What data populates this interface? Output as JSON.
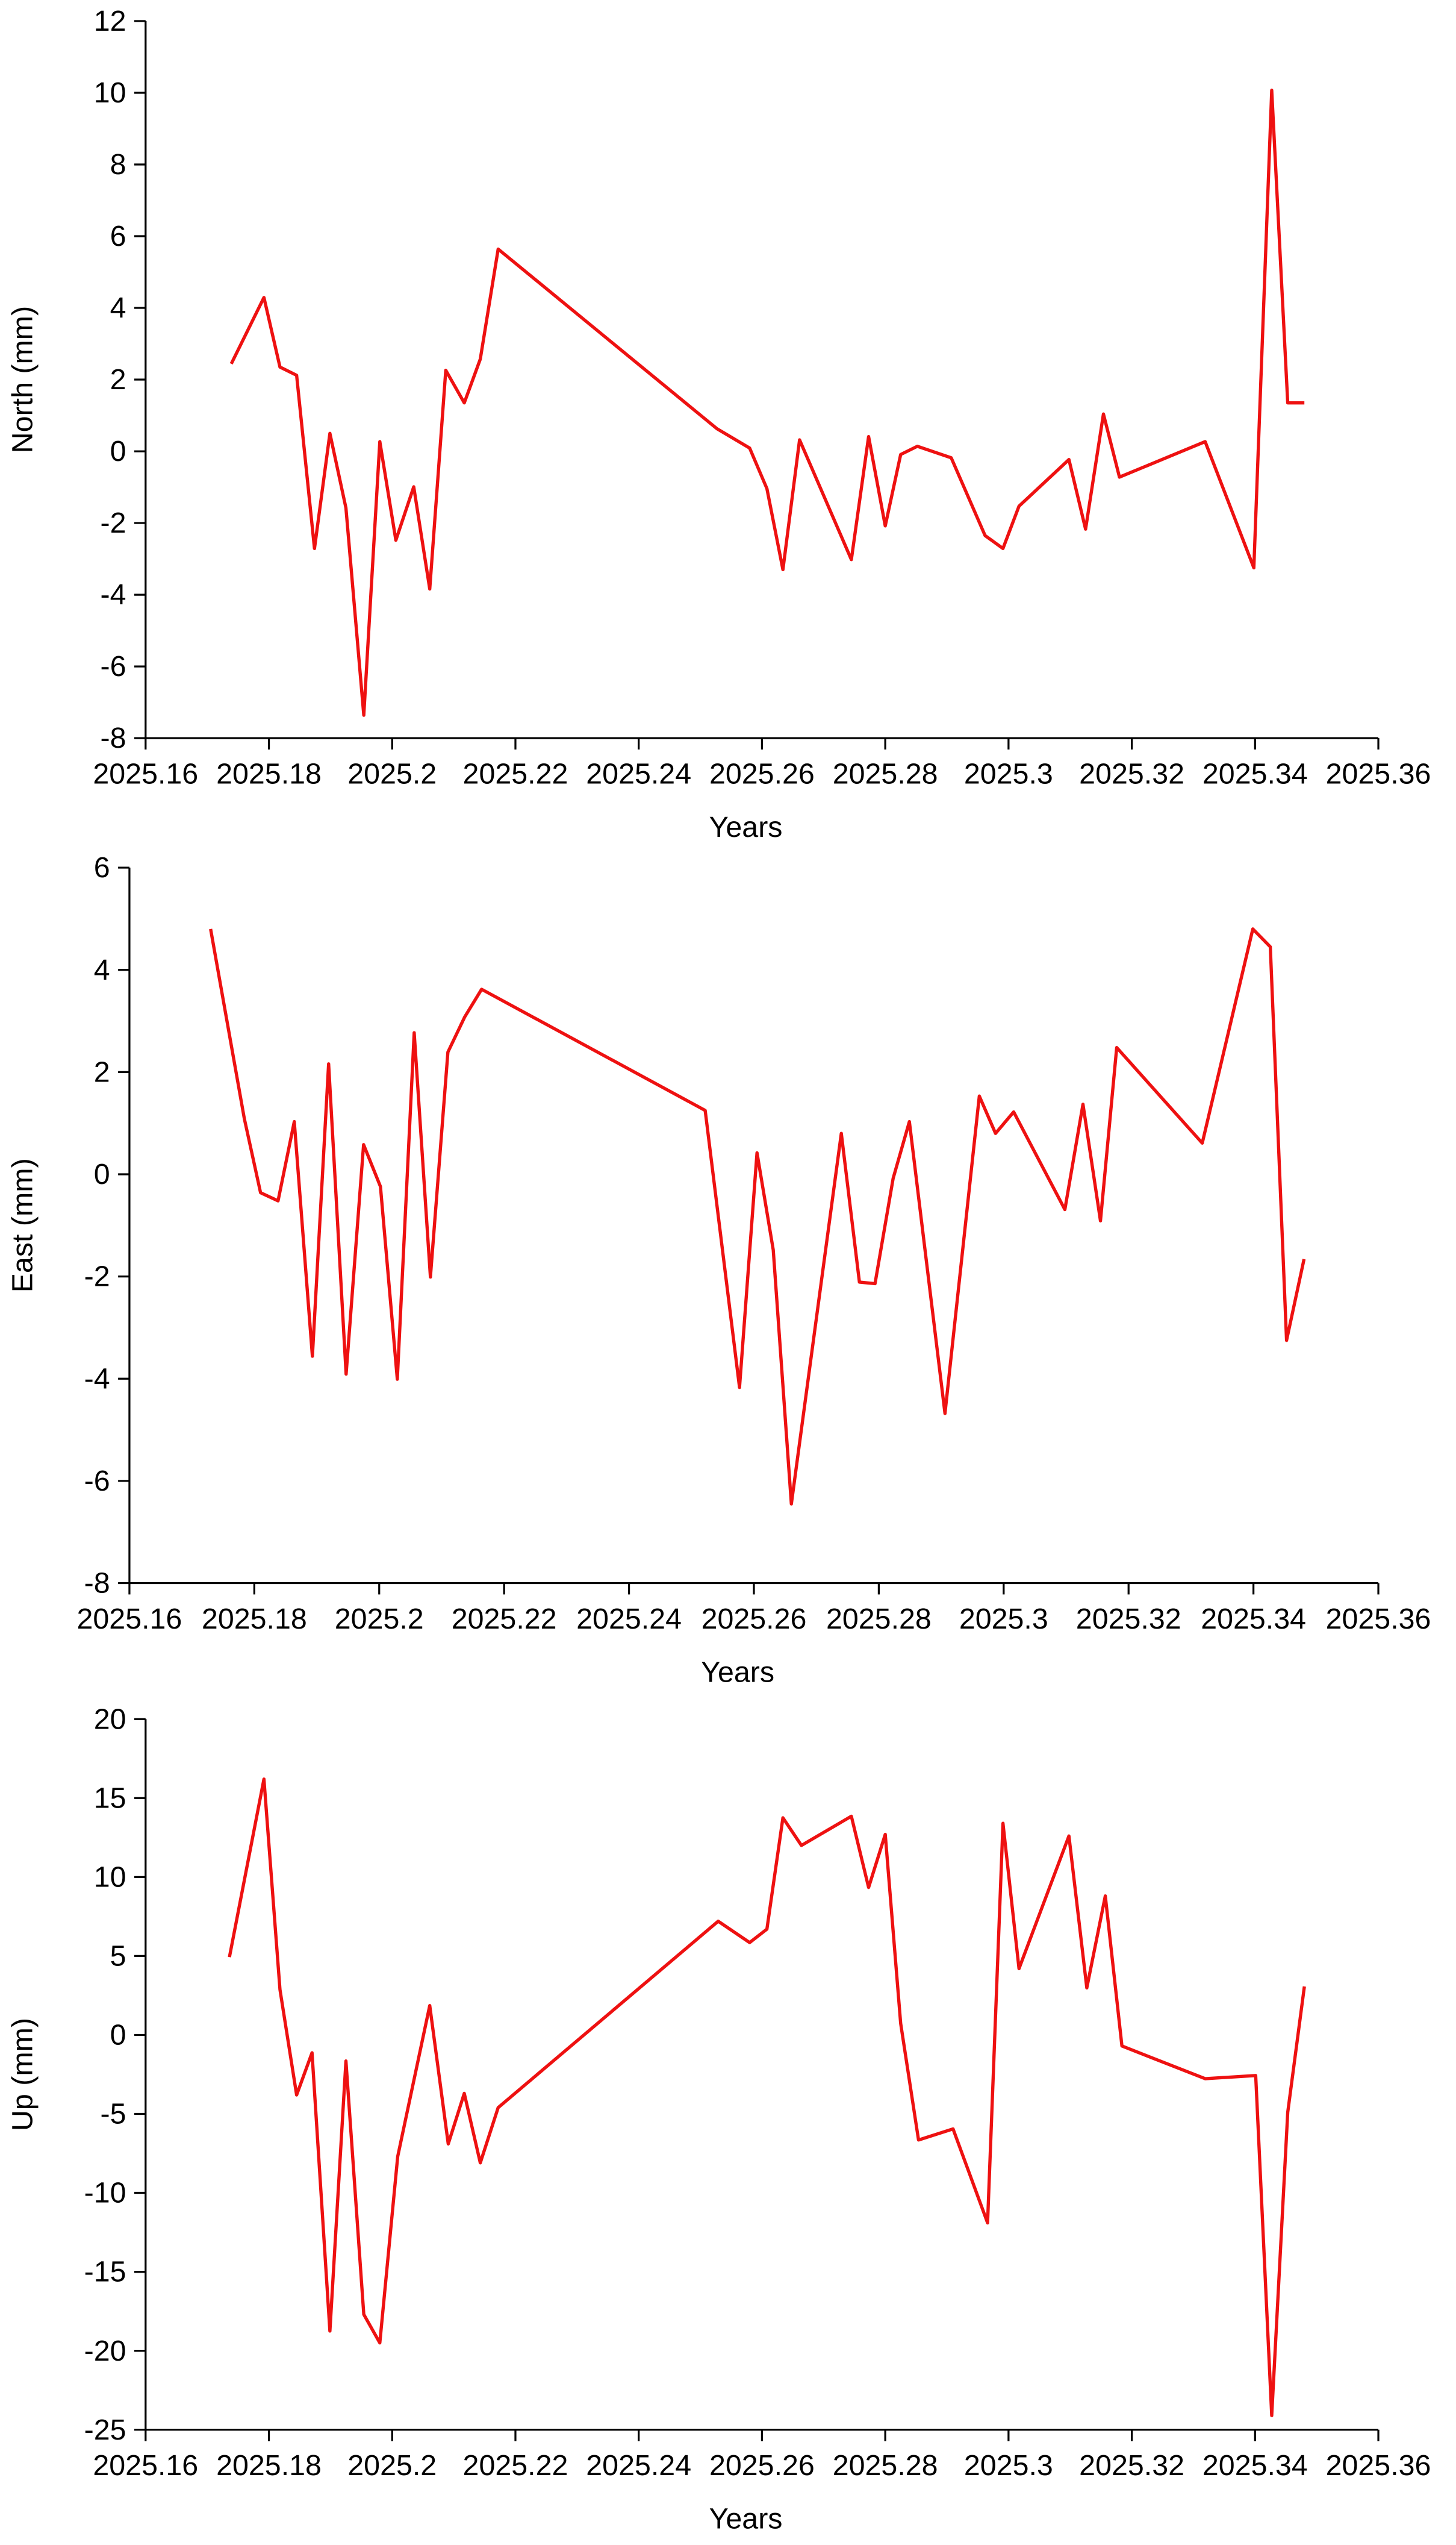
{
  "chart_data": [
    {
      "type": "line",
      "xlabel": "Years",
      "ylabel": "North (mm)",
      "color": "#ee1111",
      "xlim": [
        2025.16,
        2025.36
      ],
      "xticks": [
        2025.16,
        2025.18,
        2025.2,
        2025.22,
        2025.24,
        2025.26,
        2025.28,
        2025.3,
        2025.32,
        2025.34,
        2025.36
      ],
      "ylim": [
        -8,
        12
      ],
      "yticks": [
        -8,
        -6,
        -4,
        -2,
        0,
        2,
        4,
        6,
        8,
        10,
        12
      ],
      "x": [
        2025.1739,
        2025.1792,
        2025.1818,
        2025.1845,
        2025.1874,
        2025.1899,
        2025.1925,
        2025.1954,
        2025.198,
        2025.2006,
        2025.2035,
        2025.2061,
        2025.2087,
        2025.2117,
        2025.2143,
        2025.2172,
        2025.2527,
        2025.258,
        2025.2608,
        2025.2634,
        2025.2661,
        2025.2745,
        2025.2773,
        2025.28,
        2025.2825,
        2025.2852,
        2025.2907,
        2025.2962,
        2025.2991,
        2025.3017,
        2025.3098,
        2025.3125,
        2025.3154,
        2025.318,
        2025.3319,
        2025.3398,
        2025.3427,
        2025.3453,
        2025.348
      ],
      "values": [
        2.44,
        4.29,
        2.35,
        2.12,
        -2.71,
        0.5,
        -1.58,
        -7.36,
        0.27,
        -2.48,
        -0.99,
        -3.84,
        2.26,
        1.35,
        2.57,
        5.64,
        0.63,
        0.09,
        -1.04,
        -3.3,
        0.32,
        -3.02,
        0.41,
        -2.08,
        -0.09,
        0.14,
        -0.18,
        -2.35,
        -2.71,
        -1.53,
        -0.23,
        -2.17,
        1.04,
        -0.72,
        0.27,
        -3.25,
        10.07,
        1.35,
        1.35
      ]
    },
    {
      "type": "line",
      "xlabel": "Years",
      "ylabel": "East (mm)",
      "color": "#ee1111",
      "xlim": [
        2025.16,
        2025.36
      ],
      "xticks": [
        2025.16,
        2025.18,
        2025.2,
        2025.22,
        2025.24,
        2025.26,
        2025.28,
        2025.3,
        2025.32,
        2025.34,
        2025.36
      ],
      "ylim": [
        -8,
        6
      ],
      "yticks": [
        -8,
        -6,
        -4,
        -2,
        0,
        2,
        4,
        6
      ],
      "x": [
        2025.173,
        2025.1784,
        2025.181,
        2025.1838,
        2025.1864,
        2025.1893,
        2025.1919,
        2025.1947,
        2025.1975,
        2025.2002,
        2025.2029,
        2025.2056,
        2025.2082,
        2025.211,
        2025.2137,
        2025.2164,
        2025.2522,
        2025.2577,
        2025.2605,
        2025.2631,
        2025.266,
        2025.274,
        2025.2769,
        2025.2794,
        2025.2823,
        2025.2849,
        2025.2906,
        2025.2961,
        2025.2987,
        2025.3016,
        2025.3098,
        2025.3127,
        2025.3155,
        2025.3181,
        2025.3318,
        2025.3399,
        2025.3427,
        2025.3453,
        2025.3481
      ],
      "values": [
        4.8,
        1.09,
        -0.36,
        -0.52,
        1.03,
        -3.56,
        2.16,
        -3.91,
        0.58,
        -0.24,
        -4.01,
        2.77,
        -2.01,
        2.39,
        3.08,
        3.62,
        1.25,
        -4.17,
        0.42,
        -1.48,
        -6.45,
        0.8,
        -2.11,
        -2.14,
        -0.08,
        1.03,
        -4.68,
        1.53,
        0.8,
        1.22,
        -0.69,
        1.37,
        -0.91,
        2.48,
        0.61,
        4.8,
        4.45,
        -3.25,
        -1.66
      ]
    },
    {
      "type": "line",
      "xlabel": "Years",
      "ylabel": "Up (mm)",
      "color": "#ee1111",
      "xlim": [
        2025.16,
        2025.36
      ],
      "xticks": [
        2025.16,
        2025.18,
        2025.2,
        2025.22,
        2025.24,
        2025.26,
        2025.28,
        2025.3,
        2025.32,
        2025.34,
        2025.36
      ],
      "ylim": [
        -25,
        20
      ],
      "yticks": [
        -25,
        -20,
        -15,
        -10,
        -5,
        0,
        5,
        10,
        15,
        20
      ],
      "x": [
        2025.1736,
        2025.1792,
        2025.1818,
        2025.1845,
        2025.187,
        2025.1899,
        2025.1925,
        2025.1954,
        2025.198,
        2025.2009,
        2025.2061,
        2025.2091,
        2025.2117,
        2025.2143,
        2025.2172,
        2025.2529,
        2025.258,
        2025.2608,
        2025.2634,
        2025.2664,
        2025.2745,
        2025.2773,
        2025.28,
        2025.2825,
        2025.2854,
        2025.291,
        2025.2966,
        2025.2991,
        2025.3017,
        2025.3098,
        2025.3127,
        2025.3157,
        2025.3184,
        2025.3319,
        2025.3401,
        2025.3427,
        2025.3453,
        2025.348
      ],
      "values": [
        4.93,
        16.2,
        2.87,
        -3.8,
        -1.13,
        -18.75,
        -1.65,
        -17.7,
        -19.5,
        -7.7,
        1.86,
        -6.9,
        -3.7,
        -8.1,
        -4.6,
        7.2,
        5.85,
        6.7,
        13.75,
        12.0,
        13.85,
        9.34,
        12.7,
        0.73,
        -6.65,
        -5.95,
        -11.9,
        13.4,
        4.2,
        12.6,
        2.98,
        8.8,
        -0.7,
        -2.77,
        -2.57,
        -24.1,
        -4.9,
        3.07
      ]
    }
  ]
}
